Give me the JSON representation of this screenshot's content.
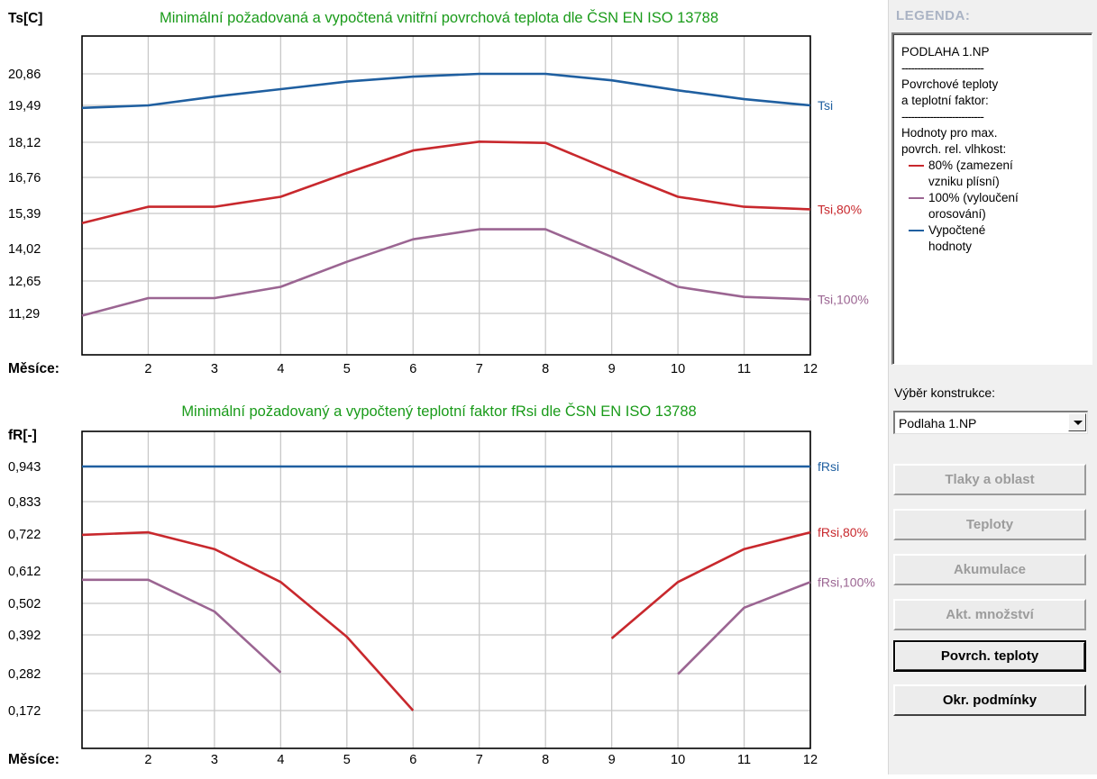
{
  "chart_data": [
    {
      "type": "line",
      "title": "Minimální požadovaná a vypočtená vnitřní povrchová teplota dle ČSN EN ISO 13788",
      "ylabel": "Ts[C]",
      "xlabel": "Měsíce:",
      "x": [
        1,
        2,
        3,
        4,
        5,
        6,
        7,
        8,
        9,
        10,
        11,
        12
      ],
      "x_ticks": [
        2,
        3,
        4,
        5,
        6,
        7,
        8,
        9,
        10,
        11,
        12
      ],
      "y_ticks": [
        "20,86",
        "19,49",
        "18,12",
        "16,76",
        "15,39",
        "14,02",
        "12,65",
        "11,29"
      ],
      "ylim": [
        9.93,
        22.2
      ],
      "grid": true,
      "series": [
        {
          "name": "Tsi",
          "color": "#1f5fa0",
          "values": [
            19.5,
            19.6,
            19.95,
            20.25,
            20.55,
            20.75,
            20.86,
            20.86,
            20.6,
            20.2,
            19.85,
            19.6
          ]
        },
        {
          "name": "Tsi,80%",
          "color": "#c8282d",
          "values": [
            14.9,
            15.55,
            15.55,
            15.95,
            16.9,
            17.8,
            18.15,
            18.1,
            17.0,
            15.95,
            15.55,
            15.45
          ]
        },
        {
          "name": "Tsi,100%",
          "color": "#9b6592",
          "values": [
            11.2,
            11.9,
            11.9,
            12.35,
            13.35,
            14.25,
            14.65,
            14.65,
            13.55,
            12.35,
            11.95,
            11.85
          ]
        }
      ]
    },
    {
      "type": "line",
      "title": "Minimální požadovaný a vypočtený teplotní faktor fRsi dle ČSN EN ISO 13788",
      "ylabel": "fR[-]",
      "xlabel": "Měsíce:",
      "x": [
        1,
        2,
        3,
        4,
        5,
        6,
        7,
        8,
        9,
        10,
        11,
        12
      ],
      "x_ticks": [
        2,
        3,
        4,
        5,
        6,
        7,
        8,
        9,
        10,
        11,
        12
      ],
      "y_ticks": [
        "0,943",
        "0,833",
        "0,722",
        "0,612",
        "0,502",
        "0,392",
        "0,282",
        "0,172"
      ],
      "ylim": [
        0.062,
        1.053
      ],
      "grid": true,
      "series": [
        {
          "name": "fRsi",
          "color": "#1f5fa0",
          "values": [
            0.943,
            0.943,
            0.943,
            0.943,
            0.943,
            0.943,
            0.943,
            0.943,
            0.943,
            0.943,
            0.943,
            0.943
          ]
        },
        {
          "name": "fRsi,80%",
          "color": "#c8282d",
          "values": [
            0.727,
            0.735,
            0.682,
            0.578,
            0.405,
            0.172,
            null,
            null,
            0.4,
            0.578,
            0.682,
            0.735
          ]
        },
        {
          "name": "fRsi,100%",
          "color": "#9b6592",
          "values": [
            0.585,
            0.585,
            0.485,
            0.292,
            null,
            null,
            null,
            null,
            null,
            0.287,
            0.497,
            0.578
          ]
        }
      ]
    }
  ],
  "legend": {
    "title": "LEGENDA:",
    "construction": "PODLAHA 1.NP",
    "separator": "--------------------------",
    "heading_lines": [
      "Povrchové teploty",
      "a teplotní faktor:"
    ],
    "max_lines": [
      "Hodnoty pro max.",
      "povrch. rel. vlhkost:"
    ],
    "items": [
      {
        "lines": [
          "80% (zamezení",
          "vzniku plísní)"
        ],
        "color": "#c8282d"
      },
      {
        "lines": [
          "100% (vyloučení",
          "orosování)"
        ],
        "color": "#9b6592"
      },
      {
        "lines": [
          "Vypočtené",
          "hodnoty"
        ],
        "color": "#1f5fa0"
      }
    ]
  },
  "controls": {
    "select_label": "Výběr konstrukce:",
    "select_value": "Podlaha 1.NP",
    "buttons": {
      "tlaky": "Tlaky a oblast",
      "teploty": "Teploty",
      "akumulace": "Akumulace",
      "mnozstvi": "Akt. množství",
      "povrch": "Povrch. teploty",
      "okrajove": "Okr. podmínky"
    }
  }
}
